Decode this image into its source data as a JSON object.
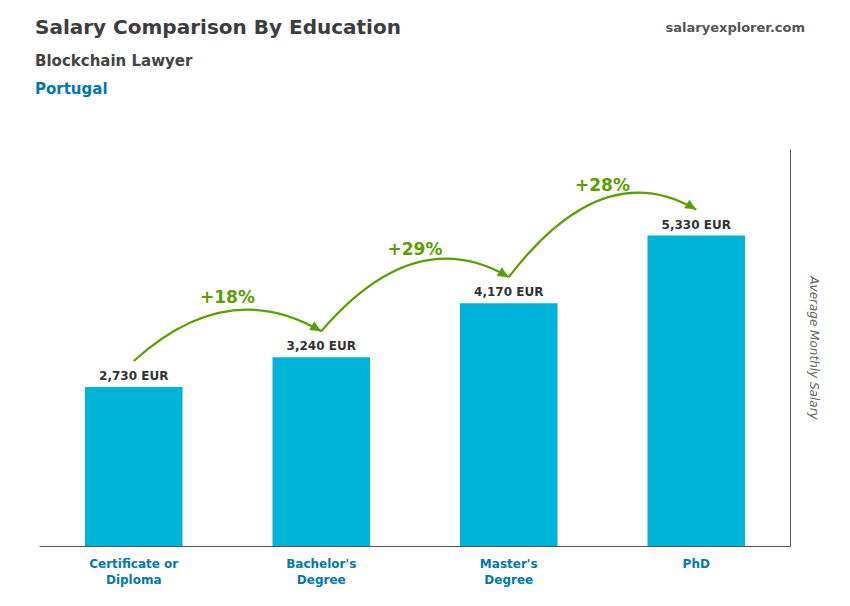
{
  "chart_data": {
    "type": "bar",
    "title": "Salary Comparison By Education",
    "subtitle": "Blockchain Lawyer",
    "ylabel": "Average Monthly Salary",
    "categories": [
      "Certificate or\nDiploma",
      "Bachelor's\nDegree",
      "Master's\nDegree",
      "PhD"
    ],
    "values": [
      2730,
      3240,
      4170,
      5330
    ],
    "value_labels": [
      "2,730 EUR",
      "3,240 EUR",
      "4,170 EUR",
      "5,330 EUR"
    ],
    "data_labels": true,
    "color": "#00b4d8",
    "ylim": [
      0,
      6800
    ],
    "grid": false,
    "tick_labels": "x",
    "annotations": [
      {
        "text": "Portugal"
      },
      {
        "text": "salaryexplorer.com"
      },
      {
        "text": "+18%",
        "from": "Certificate or\nDiploma",
        "to": "Bachelor's\nDegree"
      },
      {
        "text": "+29%",
        "from": "Bachelor's\nDegree",
        "to": "Master's\nDegree"
      },
      {
        "text": "+28%",
        "from": "Master's\nDegree",
        "to": "PhD"
      }
    ]
  }
}
